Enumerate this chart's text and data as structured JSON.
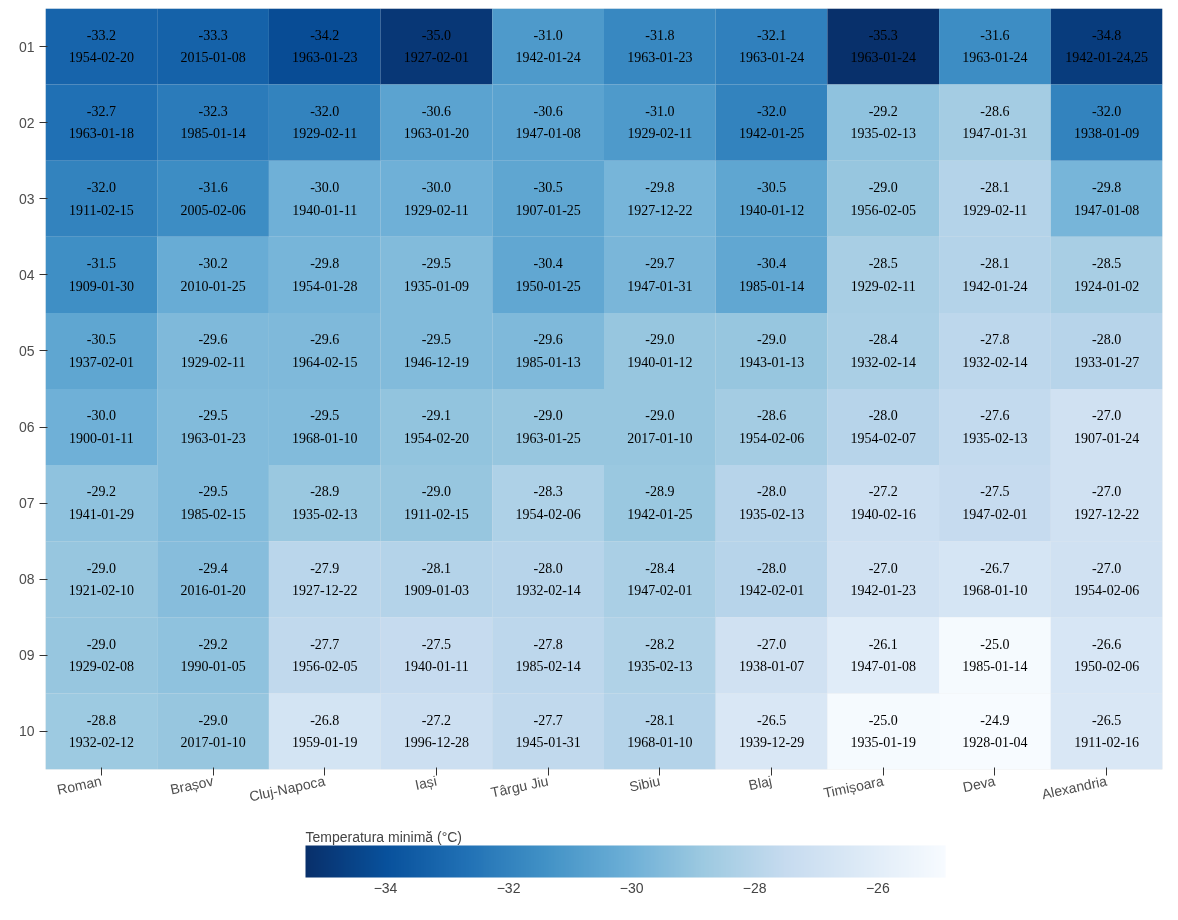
{
  "chart_data": {
    "type": "heatmap",
    "clabel": "Temperatura minimă (°C)",
    "categories": [
      "Roman",
      "Brașov",
      "Cluj-Napoca",
      "Iași",
      "Târgu Jiu",
      "Sibiu",
      "Blaj",
      "Timișoara",
      "Deva",
      "Alexandria"
    ],
    "y_categories": [
      "01",
      "02",
      "03",
      "04",
      "05",
      "06",
      "07",
      "08",
      "09",
      "10"
    ],
    "cells": [
      [
        -33.2,
        -33.3,
        -34.2,
        -35.0,
        -31.0,
        -31.8,
        -32.1,
        -35.3,
        -31.6,
        -34.8
      ],
      [
        -32.7,
        -32.3,
        -32.0,
        -30.6,
        -30.6,
        -31.0,
        -32.0,
        -29.2,
        -28.6,
        -32.0
      ],
      [
        -32.0,
        -31.6,
        -30.0,
        -30.0,
        -30.5,
        -29.8,
        -30.5,
        -29.0,
        -28.1,
        -29.8
      ],
      [
        -31.5,
        -30.2,
        -29.8,
        -29.5,
        -30.4,
        -29.7,
        -30.4,
        -28.5,
        -28.1,
        -28.5
      ],
      [
        -30.5,
        -29.6,
        -29.6,
        -29.5,
        -29.6,
        -29.0,
        -29.0,
        -28.4,
        -27.8,
        -28.0
      ],
      [
        -30.0,
        -29.5,
        -29.5,
        -29.1,
        -29.0,
        -29.0,
        -28.6,
        -28.0,
        -27.6,
        -27.0
      ],
      [
        -29.2,
        -29.5,
        -28.9,
        -29.0,
        -28.3,
        -28.9,
        -28.0,
        -27.2,
        -27.5,
        -27.0
      ],
      [
        -29.0,
        -29.4,
        -27.9,
        -28.1,
        -28.0,
        -28.4,
        -28.0,
        -27.0,
        -26.7,
        -27.0
      ],
      [
        -29.0,
        -29.2,
        -27.7,
        -27.5,
        -27.8,
        -28.2,
        -27.0,
        -26.1,
        -25.0,
        -26.6
      ],
      [
        -28.8,
        -29.0,
        -26.8,
        -27.2,
        -27.7,
        -28.1,
        -26.5,
        -25.0,
        -24.9,
        -26.5
      ]
    ],
    "cell_labels": [
      [
        "-33.2\n1954-02-20",
        "-33.3\n2015-01-08",
        "-34.2\n1963-01-23",
        "-35.0\n1927-02-01",
        "-31.0\n1942-01-24",
        "-31.8\n1963-01-23",
        "-32.1\n1963-01-24",
        "-35.3\n1963-01-24",
        "-31.6\n1963-01-24",
        "-34.8\n1942-01-24,25"
      ],
      [
        "-32.7\n1963-01-18",
        "-32.3\n1985-01-14",
        "-32.0\n1929-02-11",
        "-30.6\n1963-01-20",
        "-30.6\n1947-01-08",
        "-31.0\n1929-02-11",
        "-32.0\n1942-01-25",
        "-29.2\n1935-02-13",
        "-28.6\n1947-01-31",
        "-32.0\n1938-01-09"
      ],
      [
        "-32.0\n1911-02-15",
        "-31.6\n2005-02-06",
        "-30.0\n1940-01-11",
        "-30.0\n1929-02-11",
        "-30.5\n1907-01-25",
        "-29.8\n1927-12-22",
        "-30.5\n1940-01-12",
        "-29.0\n1956-02-05",
        "-28.1\n1929-02-11",
        "-29.8\n1947-01-08"
      ],
      [
        "-31.5\n1909-01-30",
        "-30.2\n2010-01-25",
        "-29.8\n1954-01-28",
        "-29.5\n1935-01-09",
        "-30.4\n1950-01-25",
        "-29.7\n1947-01-31",
        "-30.4\n1985-01-14",
        "-28.5\n1929-02-11",
        "-28.1\n1942-01-24",
        "-28.5\n1924-01-02"
      ],
      [
        "-30.5\n1937-02-01",
        "-29.6\n1929-02-11",
        "-29.6\n1964-02-15",
        "-29.5\n1946-12-19",
        "-29.6\n1985-01-13",
        "-29.0\n1940-01-12",
        "-29.0\n1943-01-13",
        "-28.4\n1932-02-14",
        "-27.8\n1932-02-14",
        "-28.0\n1933-01-27"
      ],
      [
        "-30.0\n1900-01-11",
        "-29.5\n1963-01-23",
        "-29.5\n1968-01-10",
        "-29.1\n1954-02-20",
        "-29.0\n1963-01-25",
        "-29.0\n2017-01-10",
        "-28.6\n1954-02-06",
        "-28.0\n1954-02-07",
        "-27.6\n1935-02-13",
        "-27.0\n1907-01-24"
      ],
      [
        "-29.2\n1941-01-29",
        "-29.5\n1985-02-15",
        "-28.9\n1935-02-13",
        "-29.0\n1911-02-15",
        "-28.3\n1954-02-06",
        "-28.9\n1942-01-25",
        "-28.0\n1935-02-13",
        "-27.2\n1940-02-16",
        "-27.5\n1947-02-01",
        "-27.0\n1927-12-22"
      ],
      [
        "-29.0\n1921-02-10",
        "-29.4\n2016-01-20",
        "-27.9\n1927-12-22",
        "-28.1\n1909-01-03",
        "-28.0\n1932-02-14",
        "-28.4\n1947-02-01",
        "-28.0\n1942-02-01",
        "-27.0\n1942-01-23",
        "-26.7\n1968-01-10",
        "-27.0\n1954-02-06"
      ],
      [
        "-29.0\n1929-02-08",
        "-29.2\n1990-01-05",
        "-27.7\n1956-02-05",
        "-27.5\n1940-01-11",
        "-27.8\n1985-02-14",
        "-28.2\n1935-02-13",
        "-27.0\n1938-01-07",
        "-26.1\n1947-01-08",
        "-25.0\n1985-01-14",
        "-26.6\n1950-02-06"
      ],
      [
        "-28.8\n1932-02-12",
        "-29.0\n2017-01-10",
        "-26.8\n1959-01-19",
        "-27.2\n1996-12-28",
        "-27.7\n1945-01-31",
        "-28.1\n1968-01-10",
        "-26.5\n1939-12-29",
        "-25.0\n1935-01-19",
        "-24.9\n1928-01-04",
        "-26.5\n1911-02-16"
      ]
    ],
    "clim": [
      -35.3,
      -24.9
    ],
    "cticks": [
      -34,
      -32,
      -30,
      -28,
      -26
    ]
  }
}
